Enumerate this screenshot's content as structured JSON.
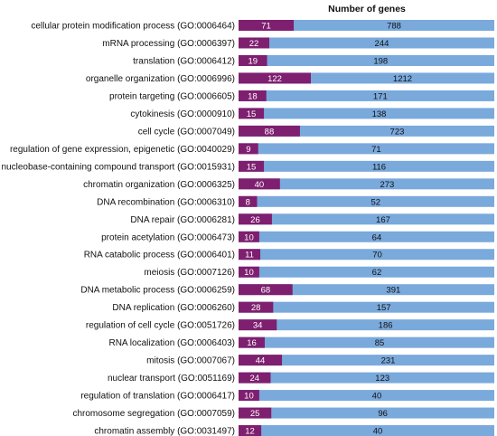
{
  "chart_data": {
    "type": "bar",
    "orientation": "horizontal",
    "stacked": false,
    "title": "Number of genes",
    "xlabel": "",
    "ylabel": "",
    "legend": "none",
    "grid": false,
    "colors": {
      "total": "#7aa9dc",
      "subset": "#7e1f6f",
      "subset_label": "#ffffff",
      "total_label": "#111111"
    },
    "categories": [
      "cellular protein modification process (GO:0006464)",
      "mRNA processing (GO:0006397)",
      "translation (GO:0006412)",
      "organelle organization (GO:0006996)",
      "protein targeting (GO:0006605)",
      "cytokinesis (GO:0000910)",
      "cell cycle (GO:0007049)",
      "regulation of gene expression, epigenetic (GO:0040029)",
      "nucleobase-containing compound transport (GO:0015931)",
      "chromatin organization (GO:0006325)",
      "DNA recombination (GO:0006310)",
      "DNA repair (GO:0006281)",
      "protein acetylation (GO:0006473)",
      "RNA catabolic process (GO:0006401)",
      "meiosis (GO:0007126)",
      "DNA metabolic process (GO:0006259)",
      "DNA replication (GO:0006260)",
      "regulation of cell cycle (GO:0051726)",
      "RNA localization (GO:0006403)",
      "mitosis (GO:0007067)",
      "nuclear transport (GO:0051169)",
      "regulation of translation (GO:0006417)",
      "chromosome segregation (GO:0007059)",
      "chromatin assembly (GO:0031497)"
    ],
    "series": [
      {
        "values": [
          788,
          244,
          198,
          1212,
          171,
          138,
          723,
          71,
          116,
          273,
          52,
          167,
          64,
          70,
          62,
          391,
          157,
          186,
          85,
          231,
          123,
          40,
          96,
          40
        ]
      },
      {
        "values": [
          71,
          22,
          19,
          122,
          18,
          15,
          88,
          9,
          15,
          40,
          8,
          26,
          10,
          11,
          10,
          68,
          28,
          34,
          16,
          44,
          24,
          10,
          25,
          12
        ]
      }
    ]
  }
}
